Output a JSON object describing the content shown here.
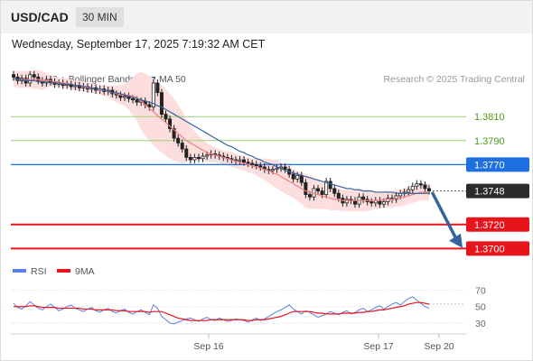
{
  "header": {
    "symbol": "USD/CAD",
    "timeframe": "30 MIN"
  },
  "datetime": "Wednesday, September 17, 2025 7:19:32 AM CET",
  "legend": {
    "bollinger": "MA 20 + Bollinger Bands",
    "ma50": "MA 50",
    "rsi": "RSI",
    "rsi_ma": "9MA",
    "copyright": "Research © 2025 Trading Central"
  },
  "colors": {
    "candle": "#222222",
    "ma20": "#f08080",
    "band": "#fddede",
    "ma50": "#35649c",
    "resistance": "#9ed07a",
    "resistance_text": "#4c9a1c",
    "pivot": "#1e6fe0",
    "support": "#e8141c",
    "rsi": "#5b7fe0",
    "rsi_ma": "#e8141c"
  },
  "chart_data": [
    {
      "type": "candlestick",
      "y_range": [
        1.3692,
        1.3835
      ],
      "x_ticks": [
        "Sep 16",
        "Sep 17",
        "Sep 20"
      ],
      "levels": [
        {
          "value": 1.381,
          "label": "1.3810",
          "kind": "resistance"
        },
        {
          "value": 1.379,
          "label": "1.3790",
          "kind": "resistance"
        },
        {
          "value": 1.377,
          "label": "1.3770",
          "kind": "pivot"
        },
        {
          "value": 1.3748,
          "label": "1.3748",
          "kind": "current"
        },
        {
          "value": 1.372,
          "label": "1.3720",
          "kind": "support"
        },
        {
          "value": 1.37,
          "label": "1.3700",
          "kind": "support"
        }
      ],
      "closes": [
        1.3843,
        1.384,
        1.3842,
        1.3838,
        1.3845,
        1.3843,
        1.384,
        1.3838,
        1.3841,
        1.3839,
        1.3837,
        1.3838,
        1.3836,
        1.3837,
        1.3835,
        1.3836,
        1.3834,
        1.3835,
        1.3833,
        1.3834,
        1.3832,
        1.3833,
        1.3831,
        1.3832,
        1.3829,
        1.3828,
        1.3826,
        1.3827,
        1.3825,
        1.3824,
        1.3822,
        1.3823,
        1.382,
        1.3818,
        1.3838,
        1.383,
        1.3812,
        1.3808,
        1.38,
        1.3792,
        1.3788,
        1.3783,
        1.3776,
        1.3774,
        1.3776,
        1.3775,
        1.3777,
        1.3778,
        1.3779,
        1.3778,
        1.3777,
        1.3776,
        1.3775,
        1.3774,
        1.3773,
        1.3774,
        1.3772,
        1.3771,
        1.377,
        1.3769,
        1.3768,
        1.3766,
        1.3765,
        1.3766,
        1.3767,
        1.3768,
        1.3766,
        1.3762,
        1.3758,
        1.3761,
        1.3755,
        1.3745,
        1.3743,
        1.375,
        1.3748,
        1.3745,
        1.3756,
        1.375,
        1.3746,
        1.3742,
        1.3738,
        1.3741,
        1.374,
        1.3737,
        1.3743,
        1.3741,
        1.3739,
        1.3738,
        1.374,
        1.3737,
        1.3739,
        1.3742,
        1.3741,
        1.3744,
        1.3746,
        1.3747,
        1.3749,
        1.3752,
        1.3754,
        1.3753,
        1.375,
        1.3748
      ],
      "ma20": [
        1.3842,
        1.3841,
        1.3841,
        1.3841,
        1.3841,
        1.3841,
        1.3841,
        1.384,
        1.384,
        1.384,
        1.3839,
        1.3839,
        1.3838,
        1.3838,
        1.3837,
        1.3836,
        1.3836,
        1.3835,
        1.3834,
        1.3834,
        1.3833,
        1.3832,
        1.3832,
        1.3831,
        1.383,
        1.3829,
        1.3828,
        1.3828,
        1.3828,
        1.3827,
        1.3826,
        1.3823,
        1.382,
        1.3817,
        1.3814,
        1.3811,
        1.3808,
        1.3805,
        1.3802,
        1.3799,
        1.3796,
        1.3793,
        1.379,
        1.3788,
        1.3786,
        1.3784,
        1.3782,
        1.378,
        1.3779,
        1.3778,
        1.3777,
        1.3776,
        1.3775,
        1.3774,
        1.3773,
        1.3772,
        1.3771,
        1.377,
        1.3769,
        1.3768,
        1.3767,
        1.3766,
        1.3765,
        1.3763,
        1.3762,
        1.376,
        1.3758,
        1.3756,
        1.3754,
        1.3752,
        1.375,
        1.3748,
        1.3747,
        1.3746,
        1.3745,
        1.3744,
        1.3743,
        1.3742,
        1.3741,
        1.3741,
        1.374,
        1.374,
        1.374,
        1.374,
        1.374,
        1.374,
        1.374,
        1.374,
        1.374,
        1.374,
        1.3741,
        1.3741,
        1.3741,
        1.3742,
        1.3742,
        1.3743,
        1.3744,
        1.3745,
        1.3746,
        1.3747,
        1.3747,
        1.3747
      ],
      "ma50": [
        1.3842,
        1.3841,
        1.3841,
        1.384,
        1.384,
        1.384,
        1.3839,
        1.3839,
        1.3839,
        1.3838,
        1.3838,
        1.3838,
        1.3837,
        1.3837,
        1.3837,
        1.3836,
        1.3836,
        1.3835,
        1.3835,
        1.3834,
        1.3833,
        1.3833,
        1.3832,
        1.3831,
        1.383,
        1.383,
        1.3829,
        1.3828,
        1.3827,
        1.3826,
        1.3825,
        1.3824,
        1.3823,
        1.3822,
        1.3821,
        1.3819,
        1.3818,
        1.3816,
        1.3814,
        1.3812,
        1.381,
        1.3808,
        1.3806,
        1.3804,
        1.3802,
        1.38,
        1.3798,
        1.3796,
        1.3794,
        1.3792,
        1.379,
        1.3788,
        1.3786,
        1.3785,
        1.3783,
        1.3781,
        1.378,
        1.3778,
        1.3777,
        1.3775,
        1.3774,
        1.3772,
        1.3771,
        1.377,
        1.3768,
        1.3767,
        1.3765,
        1.3764,
        1.3763,
        1.3762,
        1.3761,
        1.376,
        1.3759,
        1.3758,
        1.3757,
        1.3756,
        1.3755,
        1.3754,
        1.3753,
        1.3752,
        1.3751,
        1.375,
        1.375,
        1.3749,
        1.3749,
        1.3748,
        1.3748,
        1.3748,
        1.3747,
        1.3747,
        1.3747,
        1.3747,
        1.3747,
        1.3746,
        1.3746,
        1.3746,
        1.3746,
        1.3746,
        1.3746,
        1.3746,
        1.3746,
        1.3746
      ],
      "band_width": [
        0.0007,
        0.0007,
        0.0007,
        0.0007,
        0.0007,
        0.0008,
        0.0008,
        0.0008,
        0.0006,
        0.0005,
        0.0004,
        0.0004,
        0.0004,
        0.0004,
        0.0004,
        0.0004,
        0.0004,
        0.0004,
        0.0004,
        0.0004,
        0.0004,
        0.0004,
        0.0005,
        0.0005,
        0.0006,
        0.0007,
        0.0008,
        0.0009,
        0.0012,
        0.0016,
        0.002,
        0.0024,
        0.0026,
        0.0027,
        0.0028,
        0.0028,
        0.0028,
        0.0028,
        0.0027,
        0.0026,
        0.0024,
        0.0022,
        0.0018,
        0.0014,
        0.0012,
        0.001,
        0.0009,
        0.0008,
        0.0007,
        0.0006,
        0.0006,
        0.0006,
        0.0006,
        0.0006,
        0.0006,
        0.0006,
        0.0006,
        0.0006,
        0.0006,
        0.0007,
        0.0008,
        0.0009,
        0.001,
        0.0011,
        0.0012,
        0.0012,
        0.0012,
        0.0012,
        0.0012,
        0.0012,
        0.0013,
        0.0014,
        0.0014,
        0.0013,
        0.0012,
        0.0011,
        0.001,
        0.001,
        0.0009,
        0.0009,
        0.0009,
        0.0009,
        0.0009,
        0.0009,
        0.0009,
        0.0009,
        0.0009,
        0.0008,
        0.0007,
        0.0007,
        0.0007,
        0.0007,
        0.0007,
        0.0007,
        0.0007,
        0.0007,
        0.0007,
        0.0007,
        0.0007,
        0.0007,
        0.0007,
        0.0007
      ]
    },
    {
      "type": "line",
      "y_range": [
        20,
        75
      ],
      "y_ticks": [
        70,
        50,
        30
      ],
      "rsi": [
        54,
        49,
        47,
        51,
        56,
        52,
        48,
        46,
        50,
        53,
        49,
        45,
        47,
        50,
        52,
        48,
        46,
        44,
        47,
        49,
        45,
        43,
        46,
        48,
        44,
        42,
        45,
        47,
        43,
        41,
        44,
        46,
        43,
        40,
        52,
        48,
        38,
        34,
        30,
        29,
        31,
        33,
        35,
        36,
        34,
        32,
        35,
        37,
        34,
        33,
        36,
        34,
        32,
        33,
        35,
        34,
        33,
        31,
        34,
        36,
        33,
        35,
        38,
        41,
        44,
        46,
        49,
        52,
        47,
        44,
        41,
        45,
        43,
        40,
        37,
        39,
        41,
        44,
        42,
        40,
        43,
        45,
        41,
        43,
        46,
        48,
        44,
        46,
        49,
        51,
        47,
        50,
        53,
        55,
        52,
        56,
        60,
        62,
        58,
        54,
        50,
        48
      ],
      "rsi_ma": [
        50,
        50,
        50,
        50,
        51,
        51,
        50,
        49,
        49,
        49,
        49,
        48,
        48,
        48,
        48,
        48,
        48,
        47,
        47,
        47,
        46,
        46,
        46,
        46,
        46,
        45,
        45,
        45,
        44,
        44,
        44,
        44,
        44,
        43,
        44,
        44,
        44,
        42,
        40,
        38,
        36,
        35,
        34,
        33,
        33,
        33,
        33,
        33,
        34,
        34,
        34,
        34,
        34,
        34,
        34,
        34,
        34,
        33,
        33,
        34,
        34,
        34,
        35,
        36,
        37,
        38,
        40,
        42,
        44,
        44,
        44,
        44,
        44,
        43,
        42,
        42,
        41,
        41,
        41,
        41,
        42,
        42,
        42,
        42,
        43,
        43,
        44,
        44,
        45,
        46,
        46,
        47,
        48,
        49,
        50,
        51,
        53,
        54,
        55,
        55,
        54,
        53
      ]
    }
  ]
}
